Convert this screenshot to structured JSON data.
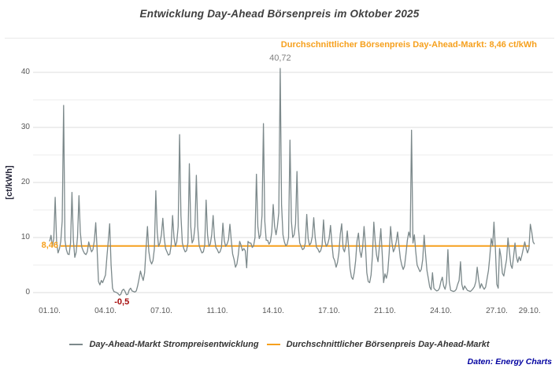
{
  "title": "Entwicklung Day-Ahead Börsenpreis im Oktober 2025",
  "subtitle": "Durchschnittlicher Börsenpreis Day-Ahead-Markt: 8,46 ct/kWh",
  "source": "Daten: Energy Charts",
  "colors": {
    "series": "#7C898B",
    "average": "#F6A01D",
    "grid_minor": "#ececec",
    "grid_major": "#dcdcdc",
    "annotation_max": "#7f7f7f",
    "annotation_min": "#A50A0A",
    "title": "#3f3f3f",
    "ticks": "#595959",
    "source": "#0000A0"
  },
  "annotations": {
    "max_label": "40,72",
    "min_label": "-0,5",
    "avg_label": "8,46"
  },
  "legend": [
    {
      "label": "Day-Ahead-Markt Strompreisentwicklung",
      "color": "#7C898B"
    },
    {
      "label": "Durchschnittlicher Börsenpreis Day-Ahead-Markt",
      "color": "#F6A01D"
    }
  ],
  "chart_data": {
    "type": "line",
    "title": "Entwicklung Day-Ahead Börsenpreis im Oktober 2025",
    "xlabel": "",
    "ylabel": "[ct/kWh]",
    "unit": "ct/kWh",
    "ylim": [
      -1,
      42
    ],
    "y_ticks": [
      0,
      10,
      20,
      30,
      40
    ],
    "grid": "horizontal every 5, legend bottom center",
    "start": "01.10.2025 00:00",
    "step_hours": 2,
    "average": 8.46,
    "max_value": 40.72,
    "min_value": -0.5,
    "series_name": "Day-Ahead-Markt Strompreisentwicklung",
    "average_name": "Durchschnittlicher Börsenpreis Day-Ahead-Markt",
    "x_ticks": [
      {
        "label": "01.10.",
        "hour": 0
      },
      {
        "label": "04.10.",
        "hour": 80
      },
      {
        "label": "07.10.",
        "hour": 160
      },
      {
        "label": "11.10.",
        "hour": 240
      },
      {
        "label": "14.10.",
        "hour": 320
      },
      {
        "label": "17.10.",
        "hour": 400
      },
      {
        "label": "21.10.",
        "hour": 480
      },
      {
        "label": "24.10.",
        "hour": 560
      },
      {
        "label": "27.10.",
        "hour": 640
      },
      {
        "label": "29.10.",
        "hour": 687
      }
    ],
    "values": [
      9.3,
      10.4,
      8.4,
      9.8,
      17.3,
      9.2,
      7.2,
      7.9,
      9.3,
      13.0,
      34.0,
      9.5,
      7.8,
      7.0,
      6.9,
      9.0,
      18.2,
      9.5,
      6.4,
      7.3,
      10.2,
      17.6,
      11.0,
      8.3,
      7.6,
      7.1,
      6.9,
      7.4,
      9.2,
      8.2,
      7.4,
      7.8,
      9.4,
      12.7,
      8.0,
      2.0,
      1.4,
      2.2,
      1.8,
      2.5,
      3.2,
      6.5,
      9.5,
      12.5,
      5.0,
      0.8,
      0.2,
      0.1,
      0.0,
      -0.2,
      -0.5,
      -0.3,
      0.4,
      0.6,
      0.2,
      -0.4,
      -0.3,
      0.5,
      0.8,
      0.3,
      0.2,
      0.1,
      0.3,
      1.2,
      2.5,
      3.9,
      3.0,
      2.2,
      3.6,
      8.0,
      12.0,
      7.5,
      5.8,
      5.2,
      5.8,
      8.0,
      18.5,
      11.0,
      8.4,
      9.0,
      10.5,
      13.5,
      10.0,
      8.0,
      7.4,
      6.8,
      7.0,
      8.6,
      14.0,
      10.0,
      8.4,
      9.2,
      12.0,
      28.7,
      14.0,
      9.0,
      8.0,
      7.4,
      7.6,
      9.0,
      23.4,
      12.0,
      9.0,
      9.6,
      12.0,
      21.3,
      12.0,
      8.6,
      7.8,
      7.2,
      7.4,
      8.6,
      16.8,
      10.5,
      8.4,
      8.8,
      10.5,
      14.0,
      10.0,
      8.2,
      7.8,
      7.2,
      7.4,
      8.2,
      12.6,
      9.4,
      8.4,
      8.8,
      9.6,
      12.4,
      9.4,
      7.0,
      6.0,
      4.6,
      5.2,
      6.8,
      9.3,
      8.6,
      7.6,
      8.0,
      7.6,
      4.5,
      9.3,
      9.0,
      9.0,
      8.2,
      8.5,
      10.0,
      21.5,
      12.0,
      9.8,
      10.5,
      14.0,
      30.7,
      13.0,
      9.5,
      9.5,
      8.8,
      9.2,
      11.0,
      16.0,
      12.0,
      10.5,
      12.0,
      14.5,
      40.72,
      16.0,
      10.5,
      9.2,
      8.5,
      8.8,
      10.0,
      27.7,
      13.0,
      10.0,
      10.5,
      12.5,
      22.0,
      12.0,
      9.0,
      8.4,
      7.8,
      8.0,
      9.0,
      14.2,
      9.8,
      8.6,
      9.0,
      10.2,
      13.6,
      10.0,
      8.2,
      7.9,
      7.3,
      7.6,
      8.6,
      13.2,
      9.4,
      8.4,
      8.8,
      9.8,
      12.2,
      9.0,
      6.4,
      5.8,
      4.6,
      5.4,
      7.2,
      10.6,
      12.5,
      8.0,
      7.4,
      8.6,
      11.2,
      8.2,
      4.4,
      2.8,
      2.4,
      3.6,
      5.8,
      9.4,
      10.8,
      7.6,
      6.4,
      8.2,
      12.0,
      8.8,
      3.6,
      2.0,
      1.8,
      3.2,
      6.6,
      12.8,
      9.2,
      6.8,
      5.6,
      8.4,
      11.6,
      7.2,
      1.8,
      3.4,
      2.6,
      3.8,
      7.2,
      12.0,
      9.0,
      7.4,
      8.0,
      9.2,
      11.0,
      8.4,
      6.2,
      5.0,
      4.2,
      4.8,
      7.0,
      9.5,
      11.0,
      10.0,
      29.5,
      9.0,
      10.5,
      7.5,
      5.0,
      4.4,
      3.8,
      4.2,
      6.0,
      10.4,
      7.0,
      4.0,
      2.6,
      1.0,
      0.5,
      3.6,
      0.8,
      0.5,
      0.3,
      0.4,
      0.8,
      2.0,
      2.8,
      1.2,
      0.6,
      1.8,
      7.8,
      2.0,
      0.4,
      0.3,
      0.2,
      0.3,
      0.6,
      1.5,
      2.2,
      5.6,
      1.5,
      0.5,
      1.2,
      0.8,
      0.4,
      0.3,
      0.2,
      0.4,
      0.7,
      1.1,
      2.0,
      4.6,
      2.4,
      0.8,
      1.6,
      1.0,
      0.6,
      1.0,
      2.5,
      4.0,
      6.5,
      9.8,
      8.5,
      12.8,
      8.0,
      1.5,
      0.8,
      8.0,
      6.5,
      3.5,
      3.0,
      4.5,
      6.0,
      9.9,
      7.5,
      5.0,
      4.4,
      6.5,
      9.0,
      6.5,
      5.5,
      6.5,
      5.8,
      6.8,
      8.0,
      9.2,
      8.0,
      7.2,
      8.0,
      12.4,
      11.0,
      9.2,
      8.8
    ]
  }
}
